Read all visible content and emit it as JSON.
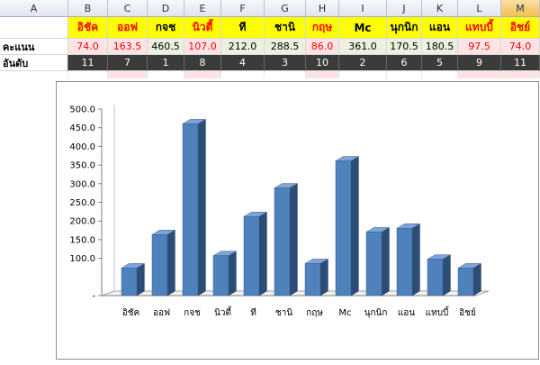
{
  "columns": [
    "A",
    "B",
    "C",
    "D",
    "E",
    "F",
    "G",
    "H",
    "I",
    "J",
    "K",
    "L",
    "M"
  ],
  "selected_column": "M",
  "row_names": {
    "label": "",
    "items": [
      {
        "text": "อิชัค",
        "color": "#ff0000",
        "bg": "#ffff00"
      },
      {
        "text": "ออฟ",
        "color": "#ff0000",
        "bg": "#ffff00"
      },
      {
        "text": "กจช",
        "color": "#000000",
        "bg": "#ffff00"
      },
      {
        "text": "นิวตี้",
        "color": "#ff0000",
        "bg": "#ffff00"
      },
      {
        "text": "ที",
        "color": "#000000",
        "bg": "#ffff00"
      },
      {
        "text": "ชานิ",
        "color": "#000000",
        "bg": "#ffff00"
      },
      {
        "text": "กฤษ",
        "color": "#ff0000",
        "bg": "#ffff00"
      },
      {
        "text": "Mc",
        "color": "#000000",
        "bg": "#ffff00"
      },
      {
        "text": "นุกนิก",
        "color": "#000000",
        "bg": "#ffff00"
      },
      {
        "text": "แอน",
        "color": "#000000",
        "bg": "#ffff00"
      },
      {
        "text": "แทบบี้",
        "color": "#ff0000",
        "bg": "#ffff00"
      },
      {
        "text": "อิชย์",
        "color": "#ff0000",
        "bg": "#ffff00"
      }
    ]
  },
  "row_scores": {
    "label": "คะแนน",
    "items": [
      {
        "text": "74.0",
        "color": "#ff0000",
        "bg": "#fde4e4"
      },
      {
        "text": "163.5",
        "color": "#ff0000",
        "bg": "#fde4e4"
      },
      {
        "text": "460.5",
        "color": "#000000",
        "bg": "#ebf1de"
      },
      {
        "text": "107.0",
        "color": "#ff0000",
        "bg": "#fde4e4"
      },
      {
        "text": "212.0",
        "color": "#000000",
        "bg": "#ebf1de"
      },
      {
        "text": "288.5",
        "color": "#000000",
        "bg": "#ebf1de"
      },
      {
        "text": "86.0",
        "color": "#ff0000",
        "bg": "#fde4e4"
      },
      {
        "text": "361.0",
        "color": "#000000",
        "bg": "#ebf1de"
      },
      {
        "text": "170.5",
        "color": "#000000",
        "bg": "#ebf1de"
      },
      {
        "text": "180.5",
        "color": "#000000",
        "bg": "#ebf1de"
      },
      {
        "text": "97.5",
        "color": "#ff0000",
        "bg": "#fde4e4"
      },
      {
        "text": "74.0",
        "color": "#ff0000",
        "bg": "#fde4e4"
      }
    ]
  },
  "row_ranks": {
    "label": "อันดับ",
    "items": [
      "11",
      "7",
      "1",
      "8",
      "4",
      "3",
      "10",
      "2",
      "6",
      "5",
      "9",
      "11"
    ]
  },
  "under_row_tints": [
    "#ffffff",
    "#fde4e4",
    "#ffffff",
    "#fde4e4",
    "#ffffff",
    "#ffffff",
    "#fde4e4",
    "#ffffff",
    "#ffffff",
    "#ffffff",
    "#fde4e4",
    "#fde4e4"
  ],
  "chart_data": {
    "type": "bar",
    "style": "3d-column",
    "categories": [
      "อิชัค",
      "ออฟ",
      "กจช",
      "นิวตี้",
      "ที",
      "ชานิ",
      "กฤษ",
      "Mc",
      "นุกนิก",
      "แอน",
      "แทบบี้",
      "อิชย์"
    ],
    "values": [
      74.0,
      163.5,
      460.5,
      107.0,
      212.0,
      288.5,
      86.0,
      361.0,
      170.5,
      180.5,
      97.5,
      74.0
    ],
    "title": "",
    "xlabel": "",
    "ylabel": "",
    "ylim": [
      0,
      500
    ],
    "yticks": [
      "-",
      "100.0",
      "150.0",
      "200.0",
      "250.0",
      "300.0",
      "350.0",
      "400.0",
      "450.0",
      "500.0"
    ],
    "ytick_values": [
      0,
      100,
      150,
      200,
      250,
      300,
      350,
      400,
      450,
      500
    ],
    "legend": "none",
    "bar_color": "#4f81bd",
    "grid": false
  }
}
